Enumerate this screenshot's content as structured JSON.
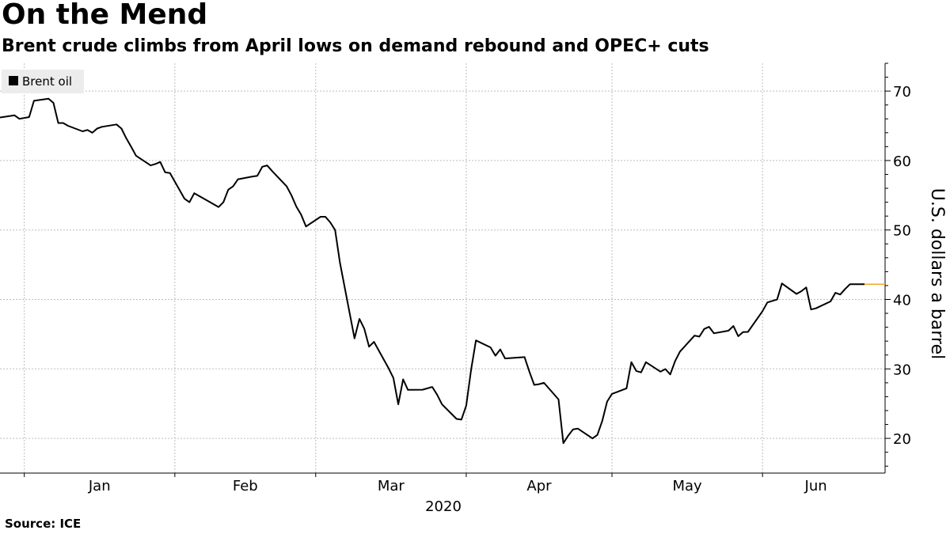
{
  "title": "On the Mend",
  "subtitle": "Brent crude climbs from April lows on demand rebound and OPEC+ cuts",
  "source": "Source: ICE",
  "colors": {
    "line": "#000000",
    "grid": "#bdbdbd",
    "legend_bg": "#ececec",
    "last_marker": "#f5a623"
  },
  "chart_data": {
    "type": "line",
    "title": "On the Mend",
    "subtitle": "Brent crude climbs from April lows on demand rebound and OPEC+ cuts",
    "ylabel": "U.S. dollars a barrel",
    "xlabel": "2020",
    "ylim": [
      15,
      74
    ],
    "yticks": [
      20,
      30,
      40,
      50,
      60,
      70
    ],
    "grid": true,
    "legend_position": "top-left",
    "x_months": [
      "Jan",
      "Feb",
      "Mar",
      "Apr",
      "May",
      "Jun"
    ],
    "year_label": "2020",
    "series": [
      {
        "name": "Brent oil",
        "color": "#000000",
        "points": [
          [
            "2019-12-27",
            66.2
          ],
          [
            "2019-12-30",
            66.5
          ],
          [
            "2019-12-31",
            66.0
          ],
          [
            "2020-01-02",
            66.25
          ],
          [
            "2020-01-03",
            68.6
          ],
          [
            "2020-01-06",
            68.9
          ],
          [
            "2020-01-07",
            68.3
          ],
          [
            "2020-01-08",
            65.4
          ],
          [
            "2020-01-09",
            65.4
          ],
          [
            "2020-01-10",
            65.0
          ],
          [
            "2020-01-13",
            64.2
          ],
          [
            "2020-01-14",
            64.4
          ],
          [
            "2020-01-15",
            64.0
          ],
          [
            "2020-01-16",
            64.6
          ],
          [
            "2020-01-17",
            64.85
          ],
          [
            "2020-01-20",
            65.2
          ],
          [
            "2020-01-21",
            64.6
          ],
          [
            "2020-01-22",
            63.2
          ],
          [
            "2020-01-23",
            62.0
          ],
          [
            "2020-01-24",
            60.7
          ],
          [
            "2020-01-27",
            59.3
          ],
          [
            "2020-01-28",
            59.5
          ],
          [
            "2020-01-29",
            59.8
          ],
          [
            "2020-01-30",
            58.3
          ],
          [
            "2020-01-31",
            58.2
          ],
          [
            "2020-02-03",
            54.5
          ],
          [
            "2020-02-04",
            54.0
          ],
          [
            "2020-02-05",
            55.3
          ],
          [
            "2020-02-06",
            54.9
          ],
          [
            "2020-02-07",
            54.5
          ],
          [
            "2020-02-10",
            53.3
          ],
          [
            "2020-02-11",
            54.0
          ],
          [
            "2020-02-12",
            55.8
          ],
          [
            "2020-02-13",
            56.3
          ],
          [
            "2020-02-14",
            57.3
          ],
          [
            "2020-02-17",
            57.7
          ],
          [
            "2020-02-18",
            57.8
          ],
          [
            "2020-02-19",
            59.1
          ],
          [
            "2020-02-20",
            59.3
          ],
          [
            "2020-02-21",
            58.5
          ],
          [
            "2020-02-24",
            56.3
          ],
          [
            "2020-02-25",
            55.0
          ],
          [
            "2020-02-26",
            53.4
          ],
          [
            "2020-02-27",
            52.2
          ],
          [
            "2020-02-28",
            50.5
          ],
          [
            "2020-03-02",
            51.9
          ],
          [
            "2020-03-03",
            51.9
          ],
          [
            "2020-03-04",
            51.1
          ],
          [
            "2020-03-05",
            49.99
          ],
          [
            "2020-03-06",
            45.3
          ],
          [
            "2020-03-09",
            34.4
          ],
          [
            "2020-03-10",
            37.2
          ],
          [
            "2020-03-11",
            35.8
          ],
          [
            "2020-03-12",
            33.2
          ],
          [
            "2020-03-13",
            33.9
          ],
          [
            "2020-03-16",
            30.1
          ],
          [
            "2020-03-17",
            28.7
          ],
          [
            "2020-03-18",
            24.9
          ],
          [
            "2020-03-19",
            28.5
          ],
          [
            "2020-03-20",
            26.98
          ],
          [
            "2020-03-23",
            27.0
          ],
          [
            "2020-03-24",
            27.2
          ],
          [
            "2020-03-25",
            27.4
          ],
          [
            "2020-03-26",
            26.3
          ],
          [
            "2020-03-27",
            24.9
          ],
          [
            "2020-03-30",
            22.8
          ],
          [
            "2020-03-31",
            22.7
          ],
          [
            "2020-04-01",
            24.7
          ],
          [
            "2020-04-02",
            29.9
          ],
          [
            "2020-04-03",
            34.1
          ],
          [
            "2020-04-06",
            33.1
          ],
          [
            "2020-04-07",
            31.9
          ],
          [
            "2020-04-08",
            32.8
          ],
          [
            "2020-04-09",
            31.5
          ],
          [
            "2020-04-13",
            31.7
          ],
          [
            "2020-04-14",
            29.6
          ],
          [
            "2020-04-15",
            27.7
          ],
          [
            "2020-04-16",
            27.8
          ],
          [
            "2020-04-17",
            28.0
          ],
          [
            "2020-04-20",
            25.6
          ],
          [
            "2020-04-21",
            19.3
          ],
          [
            "2020-04-22",
            20.4
          ],
          [
            "2020-04-23",
            21.3
          ],
          [
            "2020-04-24",
            21.4
          ],
          [
            "2020-04-27",
            19.99
          ],
          [
            "2020-04-28",
            20.5
          ],
          [
            "2020-04-29",
            22.5
          ],
          [
            "2020-04-30",
            25.3
          ],
          [
            "2020-05-01",
            26.4
          ],
          [
            "2020-05-04",
            27.2
          ],
          [
            "2020-05-05",
            30.97
          ],
          [
            "2020-05-06",
            29.7
          ],
          [
            "2020-05-07",
            29.5
          ],
          [
            "2020-05-08",
            30.97
          ],
          [
            "2020-05-11",
            29.6
          ],
          [
            "2020-05-12",
            29.98
          ],
          [
            "2020-05-13",
            29.2
          ],
          [
            "2020-05-14",
            31.1
          ],
          [
            "2020-05-15",
            32.5
          ],
          [
            "2020-05-18",
            34.8
          ],
          [
            "2020-05-19",
            34.65
          ],
          [
            "2020-05-20",
            35.75
          ],
          [
            "2020-05-21",
            36.06
          ],
          [
            "2020-05-22",
            35.13
          ],
          [
            "2020-05-25",
            35.5
          ],
          [
            "2020-05-26",
            36.17
          ],
          [
            "2020-05-27",
            34.7
          ],
          [
            "2020-05-28",
            35.3
          ],
          [
            "2020-05-29",
            35.33
          ],
          [
            "2020-06-01",
            38.32
          ],
          [
            "2020-06-02",
            39.57
          ],
          [
            "2020-06-03",
            39.79
          ],
          [
            "2020-06-04",
            39.99
          ],
          [
            "2020-06-05",
            42.3
          ],
          [
            "2020-06-08",
            40.8
          ],
          [
            "2020-06-09",
            41.18
          ],
          [
            "2020-06-10",
            41.73
          ],
          [
            "2020-06-11",
            38.55
          ],
          [
            "2020-06-12",
            38.73
          ],
          [
            "2020-06-15",
            39.72
          ],
          [
            "2020-06-16",
            40.96
          ],
          [
            "2020-06-17",
            40.71
          ],
          [
            "2020-06-18",
            41.51
          ],
          [
            "2020-06-19",
            42.19
          ],
          [
            "2020-06-22",
            42.2
          ]
        ]
      }
    ]
  }
}
